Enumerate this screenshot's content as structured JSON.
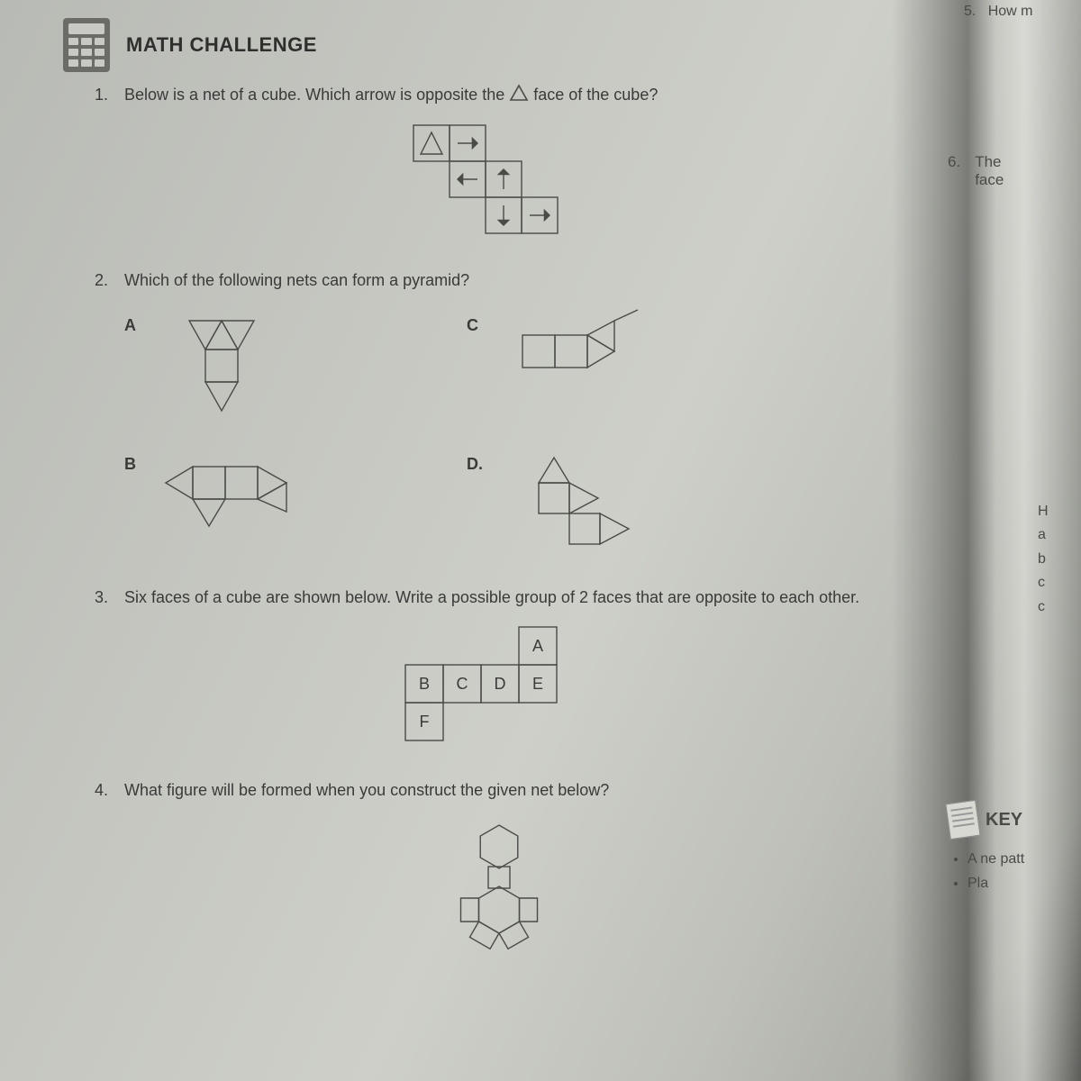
{
  "stroke": "#4a4a47",
  "stroke_width": 1.4,
  "title": "MATH CHALLENGE",
  "q1": {
    "num": "1.",
    "text_a": "Below is a net of a cube. Which arrow is opposite the ",
    "text_b": " face of the cube?",
    "cell": 40,
    "net_cells": [
      {
        "r": 0,
        "c": 0,
        "sym": "△"
      },
      {
        "r": 0,
        "c": 1,
        "sym": "→"
      },
      {
        "r": 1,
        "c": 1,
        "sym": "←"
      },
      {
        "r": 1,
        "c": 2,
        "sym": "↑"
      },
      {
        "r": 2,
        "c": 2,
        "sym": "↓"
      },
      {
        "r": 2,
        "c": 3,
        "sym": "→"
      }
    ]
  },
  "q2": {
    "num": "2.",
    "text": "Which of the following nets can form a pyramid?",
    "labels": {
      "a": "A",
      "b": "B",
      "c": "C",
      "d": "D."
    }
  },
  "q3": {
    "num": "3.",
    "text": "Six faces of a cube are shown below. Write a possible group of 2 faces that are opposite to each other.",
    "cell": 42,
    "net_cells": [
      {
        "r": 0,
        "c": 3,
        "l": "A"
      },
      {
        "r": 1,
        "c": 0,
        "l": "B"
      },
      {
        "r": 1,
        "c": 1,
        "l": "C"
      },
      {
        "r": 1,
        "c": 2,
        "l": "D"
      },
      {
        "r": 1,
        "c": 3,
        "l": "E"
      },
      {
        "r": 2,
        "c": 0,
        "l": "F"
      }
    ]
  },
  "q4": {
    "num": "4.",
    "text": "What figure will be formed when you construct the given net below?"
  },
  "rpage": {
    "top": "How m",
    "five": "5.",
    "six_num": "6.",
    "six_a": "The",
    "six_b": "face",
    "letters": [
      "H",
      "a",
      "b",
      "c",
      "c"
    ],
    "key_title": "KEY",
    "bullets": [
      "A ne patt",
      "Pla"
    ]
  }
}
